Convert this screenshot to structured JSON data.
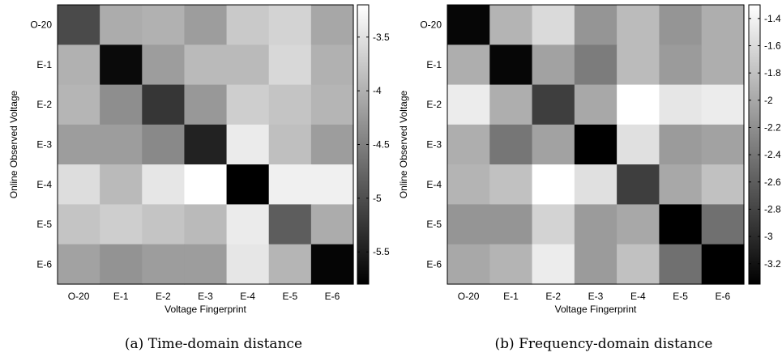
{
  "chart_data": [
    {
      "type": "heatmap",
      "caption": "(a) Time-domain distance",
      "xlabel": "Voltage Fingerprint",
      "ylabel": "Online Observed Voltage",
      "x_categories": [
        "O-20",
        "E-1",
        "E-2",
        "E-3",
        "E-4",
        "E-5",
        "E-6"
      ],
      "y_categories": [
        "O-20",
        "E-1",
        "E-2",
        "E-3",
        "E-4",
        "E-5",
        "E-6"
      ],
      "colorbar": {
        "range": [
          -5.8,
          -3.2
        ],
        "ticks": [
          -3.5,
          -4,
          -4.5,
          -5,
          -5.5
        ],
        "tick_labels": [
          "-3.5",
          "-4",
          "-4.5",
          "-5",
          "-5.5"
        ]
      },
      "colormap": "gray",
      "values": [
        [
          -5.05,
          -4.05,
          -4.0,
          -4.2,
          -3.75,
          -3.65,
          -4.1
        ],
        [
          -4.0,
          -5.7,
          -4.2,
          -3.9,
          -3.9,
          -3.6,
          -4.0
        ],
        [
          -3.95,
          -4.35,
          -5.25,
          -4.25,
          -3.7,
          -3.8,
          -3.95
        ],
        [
          -4.2,
          -4.2,
          -4.4,
          -5.45,
          -3.4,
          -3.85,
          -4.2
        ],
        [
          -3.55,
          -3.9,
          -3.45,
          -3.2,
          -5.8,
          -3.35,
          -3.35
        ],
        [
          -3.8,
          -3.7,
          -3.8,
          -3.9,
          -3.4,
          -4.85,
          -4.05
        ],
        [
          -4.15,
          -4.3,
          -4.2,
          -4.2,
          -3.45,
          -3.95,
          -5.75
        ]
      ]
    },
    {
      "type": "heatmap",
      "caption": "(b) Frequency-domain distance",
      "xlabel": "Voltage Fingerprint",
      "ylabel": "Online Observed Voltage",
      "x_categories": [
        "O-20",
        "E-1",
        "E-2",
        "E-3",
        "E-4",
        "E-5",
        "E-6"
      ],
      "y_categories": [
        "O-20",
        "E-1",
        "E-2",
        "E-3",
        "E-4",
        "E-5",
        "E-6"
      ],
      "colorbar": {
        "range": [
          -3.35,
          -1.3
        ],
        "ticks": [
          -1.4,
          -1.6,
          -1.8,
          -2,
          -2.2,
          -2.4,
          -2.6,
          -2.8,
          -3,
          -3.2
        ],
        "tick_labels": [
          "-1.4",
          "-1.6",
          "-1.8",
          "-2",
          "-2.2",
          "-2.4",
          "-2.6",
          "-2.8",
          "-3",
          "-3.2"
        ]
      },
      "colormap": "gray",
      "values": [
        [
          -3.3,
          -1.9,
          -1.6,
          -2.15,
          -1.85,
          -2.15,
          -1.95
        ],
        [
          -1.95,
          -3.3,
          -2.05,
          -2.35,
          -1.85,
          -2.1,
          -1.95
        ],
        [
          -1.45,
          -1.95,
          -2.85,
          -2.0,
          -1.3,
          -1.5,
          -1.45
        ],
        [
          -1.95,
          -2.4,
          -2.05,
          -3.35,
          -1.55,
          -2.1,
          -2.05
        ],
        [
          -1.9,
          -1.8,
          -1.3,
          -1.55,
          -2.85,
          -2.0,
          -1.8
        ],
        [
          -2.15,
          -2.15,
          -1.65,
          -2.1,
          -2.0,
          -3.35,
          -2.45
        ],
        [
          -2.0,
          -1.9,
          -1.45,
          -2.1,
          -1.8,
          -2.45,
          -3.35
        ]
      ]
    }
  ]
}
